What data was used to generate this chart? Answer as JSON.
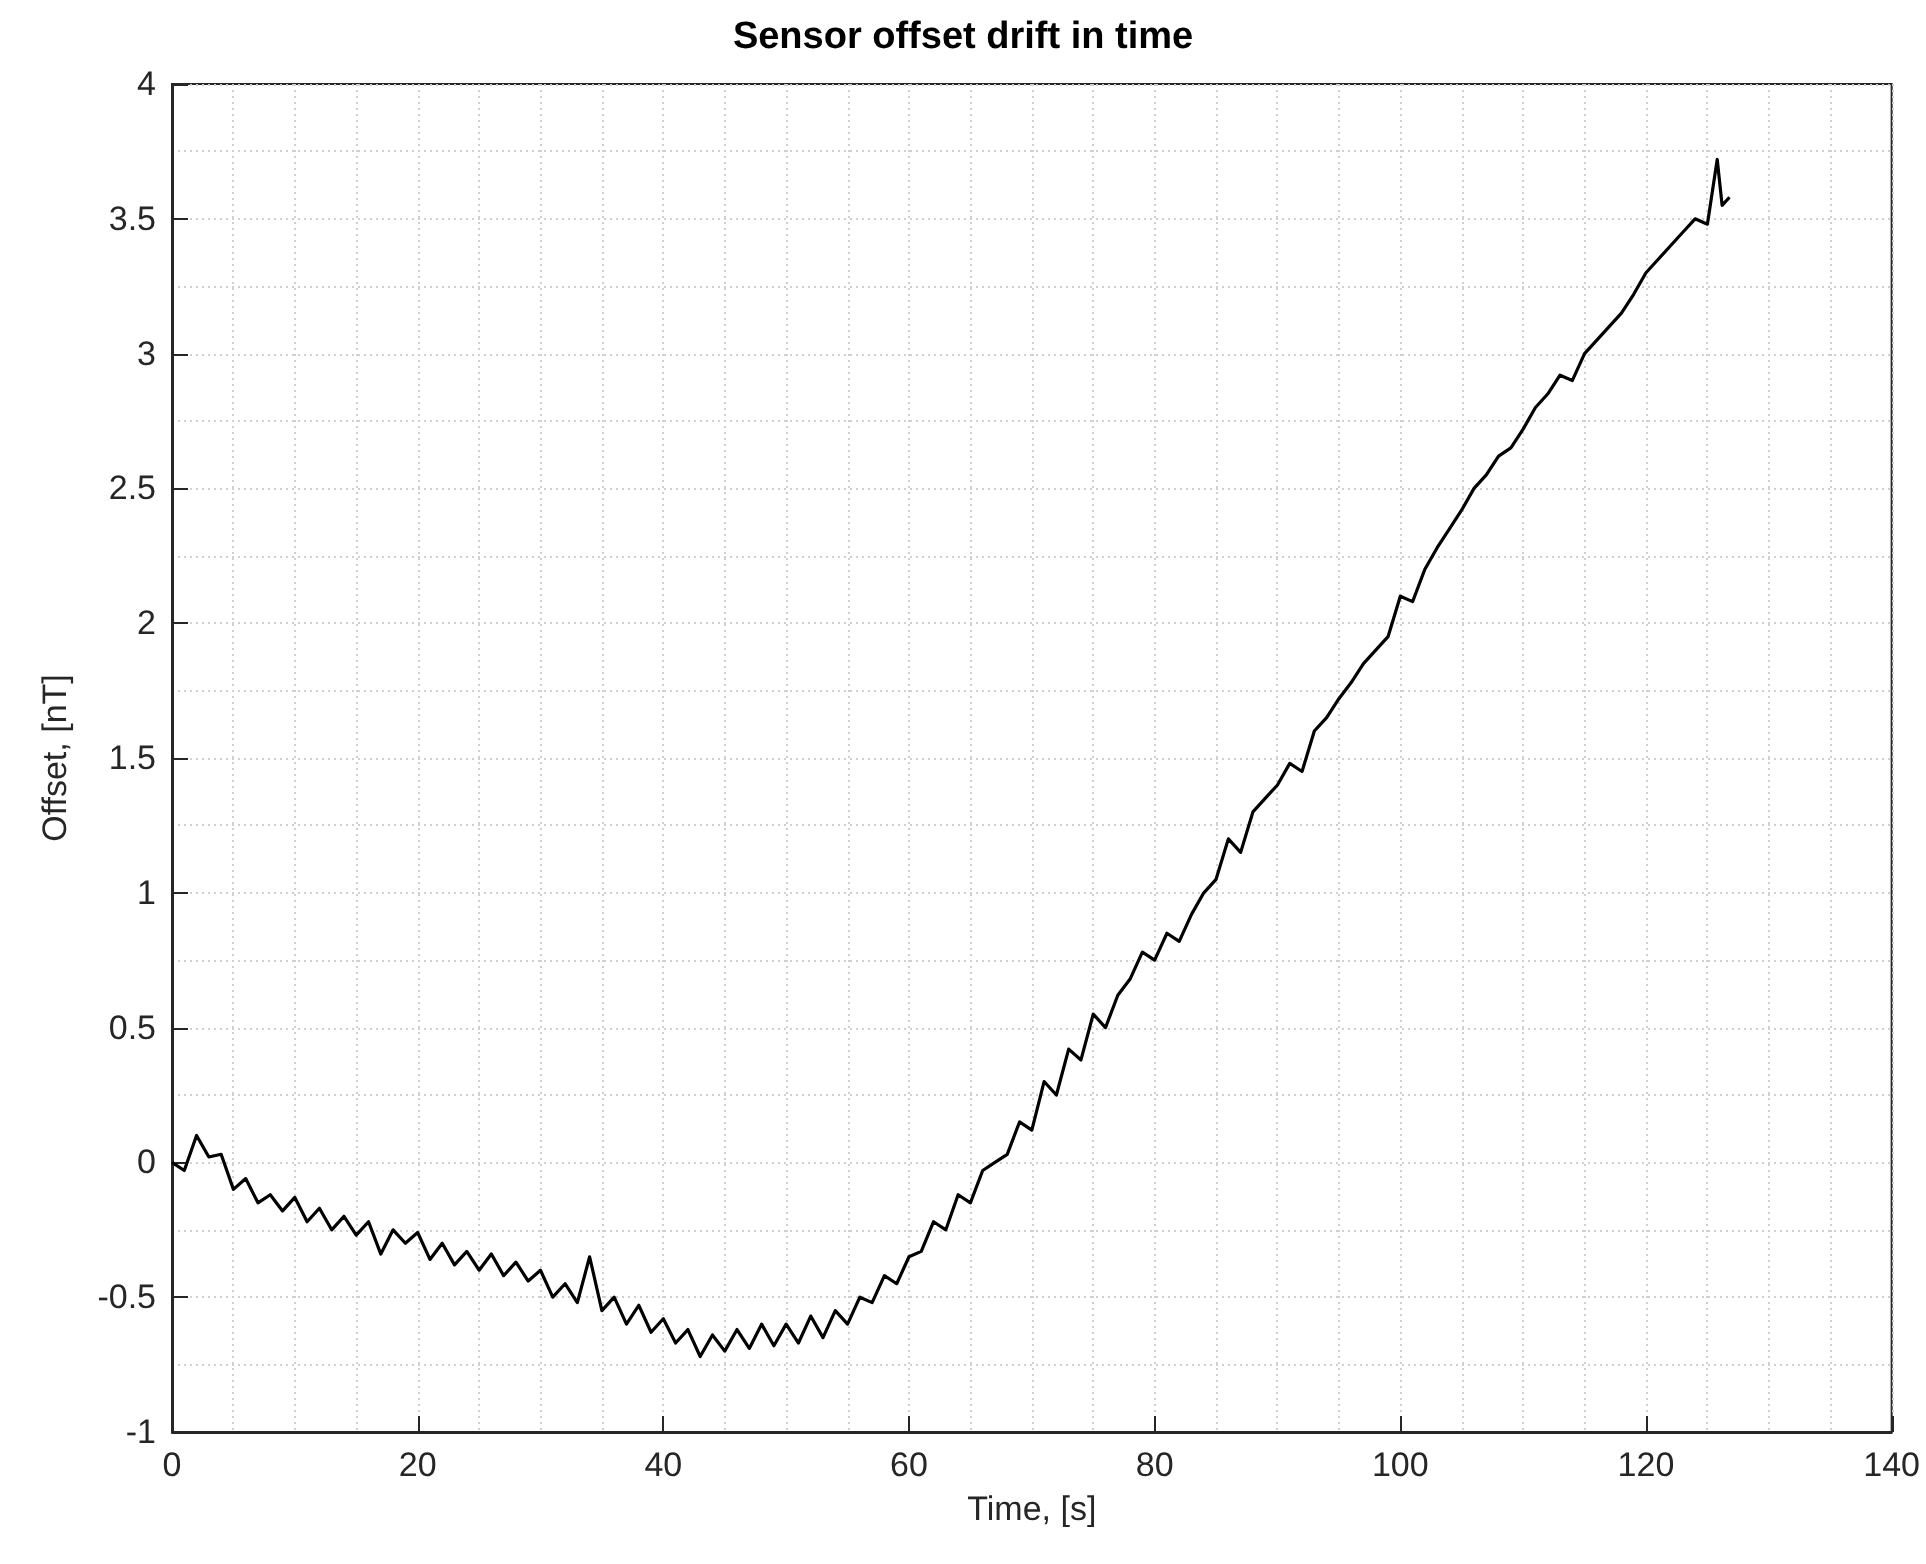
{
  "chart_data": {
    "type": "line",
    "title": "Sensor offset drift in time",
    "xlabel": "Time, [s]",
    "ylabel": "Offset, [nT]",
    "x": [
      0,
      1,
      2,
      3,
      4,
      5,
      6,
      7,
      8,
      9,
      10,
      11,
      12,
      13,
      14,
      15,
      16,
      17,
      18,
      19,
      20,
      21,
      22,
      23,
      24,
      25,
      26,
      27,
      28,
      29,
      30,
      31,
      32,
      33,
      34,
      35,
      36,
      37,
      38,
      39,
      40,
      41,
      42,
      43,
      44,
      45,
      46,
      47,
      48,
      49,
      50,
      51,
      52,
      53,
      54,
      55,
      56,
      57,
      58,
      59,
      60,
      61,
      62,
      63,
      64,
      65,
      66,
      67,
      68,
      69,
      70,
      71,
      72,
      73,
      74,
      75,
      76,
      77,
      78,
      79,
      80,
      81,
      82,
      83,
      84,
      85,
      86,
      87,
      88,
      89,
      90,
      91,
      92,
      93,
      94,
      95,
      96,
      97,
      98,
      99,
      100,
      101,
      102,
      103,
      104,
      105,
      106,
      107,
      108,
      109,
      110,
      111,
      112,
      113,
      114,
      115,
      116,
      117,
      118,
      119,
      120,
      121,
      122,
      123,
      124,
      125,
      125.8,
      126.2,
      126.8
    ],
    "series": [
      {
        "color": "#000000",
        "values": [
          0.0,
          -0.03,
          0.1,
          0.02,
          0.03,
          -0.1,
          -0.06,
          -0.15,
          -0.12,
          -0.18,
          -0.13,
          -0.22,
          -0.17,
          -0.25,
          -0.2,
          -0.27,
          -0.22,
          -0.34,
          -0.25,
          -0.3,
          -0.26,
          -0.36,
          -0.3,
          -0.38,
          -0.33,
          -0.4,
          -0.34,
          -0.42,
          -0.37,
          -0.44,
          -0.4,
          -0.5,
          -0.45,
          -0.52,
          -0.35,
          -0.55,
          -0.5,
          -0.6,
          -0.53,
          -0.63,
          -0.58,
          -0.67,
          -0.62,
          -0.72,
          -0.64,
          -0.7,
          -0.62,
          -0.69,
          -0.6,
          -0.68,
          -0.6,
          -0.67,
          -0.57,
          -0.65,
          -0.55,
          -0.6,
          -0.5,
          -0.52,
          -0.42,
          -0.45,
          -0.35,
          -0.33,
          -0.22,
          -0.25,
          -0.12,
          -0.15,
          -0.03,
          0.0,
          0.03,
          0.15,
          0.12,
          0.3,
          0.25,
          0.42,
          0.38,
          0.55,
          0.5,
          0.62,
          0.68,
          0.78,
          0.75,
          0.85,
          0.82,
          0.92,
          1.0,
          1.05,
          1.2,
          1.15,
          1.3,
          1.35,
          1.4,
          1.48,
          1.45,
          1.6,
          1.65,
          1.72,
          1.78,
          1.85,
          1.9,
          1.95,
          2.1,
          2.08,
          2.2,
          2.28,
          2.35,
          2.42,
          2.5,
          2.55,
          2.62,
          2.65,
          2.72,
          2.8,
          2.85,
          2.92,
          2.9,
          3.0,
          3.05,
          3.1,
          3.15,
          3.22,
          3.3,
          3.35,
          3.4,
          3.45,
          3.5,
          3.48,
          3.72,
          3.55,
          3.58
        ]
      }
    ],
    "xlim": [
      0,
      140
    ],
    "xticks": [
      0,
      20,
      40,
      60,
      80,
      100,
      120,
      140
    ],
    "ylim": [
      -1,
      4
    ],
    "yticks": [
      -1,
      -0.5,
      0,
      0.5,
      1,
      1.5,
      2,
      2.5,
      3,
      3.5,
      4
    ],
    "grid": true,
    "marker": "none",
    "line_style": "solid"
  }
}
